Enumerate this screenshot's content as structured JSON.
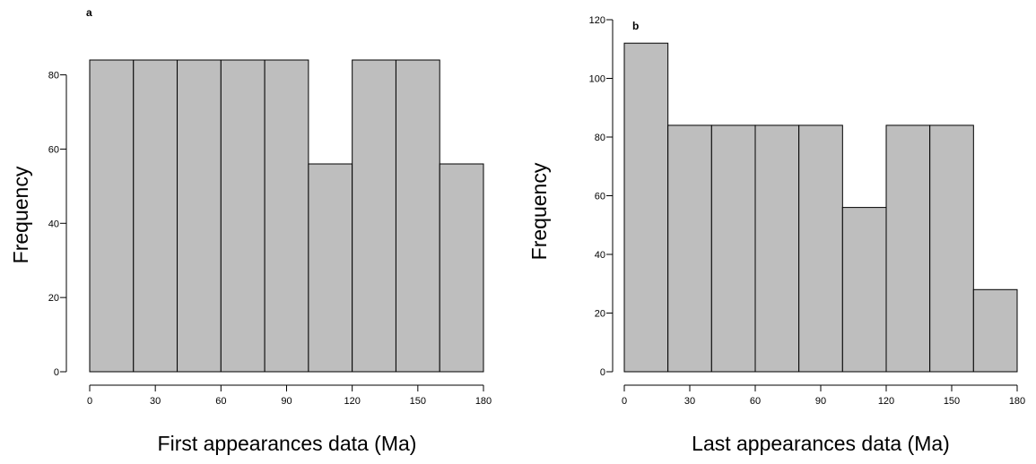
{
  "chart_data": [
    {
      "type": "bar",
      "panel_label": "a",
      "xlabel": "First appearances data (Ma)",
      "ylabel": "Frequency",
      "bin_edges": [
        0,
        20,
        40,
        60,
        80,
        100,
        120,
        140,
        160,
        180
      ],
      "values": [
        84,
        84,
        84,
        84,
        84,
        56,
        84,
        84,
        56
      ],
      "xticks": [
        0,
        30,
        60,
        90,
        120,
        150,
        180
      ],
      "yticks": [
        0,
        20,
        40,
        60,
        80
      ],
      "xlim": [
        0,
        180
      ],
      "ylim": [
        0,
        84
      ],
      "bar_color": "#bebebe",
      "grid": false
    },
    {
      "type": "bar",
      "panel_label": "b",
      "xlabel": "Last appearances data (Ma)",
      "ylabel": "Frequency",
      "bin_edges": [
        0,
        20,
        40,
        60,
        80,
        100,
        120,
        140,
        160,
        180
      ],
      "values": [
        112,
        84,
        84,
        84,
        84,
        56,
        84,
        84,
        28
      ],
      "xticks": [
        0,
        30,
        60,
        90,
        120,
        150,
        180
      ],
      "yticks": [
        0,
        20,
        40,
        60,
        80,
        100,
        120
      ],
      "xlim": [
        0,
        180
      ],
      "ylim": [
        0,
        120
      ],
      "bar_color": "#bebebe",
      "grid": false
    }
  ]
}
